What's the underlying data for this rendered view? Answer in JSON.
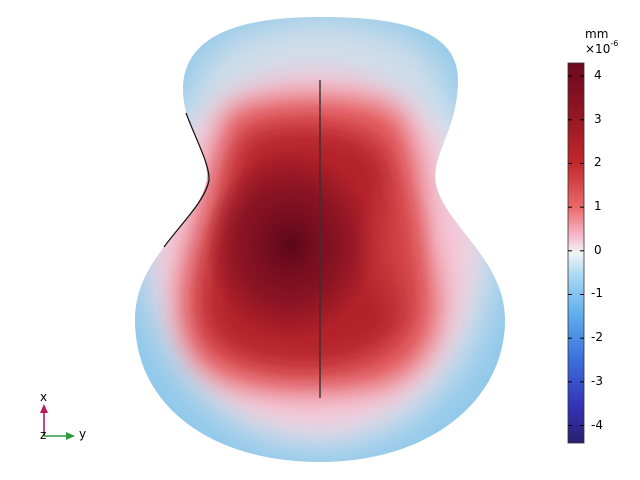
{
  "colorbar": {
    "unit": "mm",
    "exponent_base": "×10",
    "exponent_power": "-6",
    "ticks": [
      "4",
      "3",
      "2",
      "1",
      "0",
      "-1",
      "-2",
      "-3",
      "-4"
    ],
    "range": [
      -4.4,
      4.3
    ],
    "colors": [
      "#2a1f6e",
      "#3a3ac8",
      "#3c7fe0",
      "#7ec2ee",
      "#f2f2f2",
      "#f6b8cf",
      "#e65b5b",
      "#b51f24",
      "#6b0a1e"
    ]
  },
  "axes_triad": {
    "x_label": "x",
    "y_label": "y",
    "z_label": "z",
    "x_color": "#c0185f",
    "y_color": "#2e9a3c"
  },
  "plot": {
    "type": "surface displacement",
    "shape": "guitar body",
    "center_line": true
  }
}
